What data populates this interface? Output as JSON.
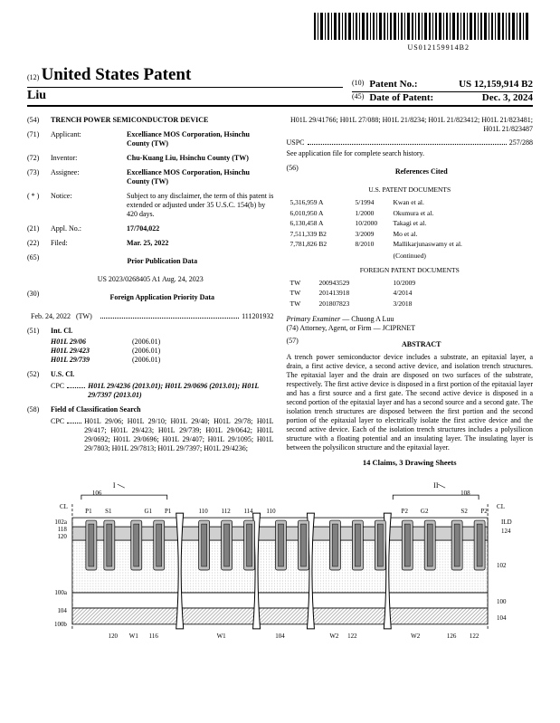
{
  "barcode_text": "US012159914B2",
  "header": {
    "pub_label_num": "(12)",
    "pub_title": "United States Patent",
    "inventor": "Liu",
    "patent_no_label_num": "(10)",
    "patent_no_label": "Patent No.:",
    "patent_no": "US 12,159,914 B2",
    "date_label_num": "(45)",
    "date_label": "Date of Patent:",
    "date": "Dec. 3, 2024"
  },
  "left": {
    "f54_code": "(54)",
    "f54_title": "TRENCH POWER SEMICONDUCTOR DEVICE",
    "f71_code": "(71)",
    "f71_label": "Applicant:",
    "f71_body": "Excelliance MOS Corporation, Hsinchu County (TW)",
    "f72_code": "(72)",
    "f72_label": "Inventor:",
    "f72_body": "Chu-Kuang Liu, Hsinchu County (TW)",
    "f73_code": "(73)",
    "f73_label": "Assignee:",
    "f73_body": "Excelliance MOS Corporation, Hsinchu County (TW)",
    "fnotice_code": "( * )",
    "fnotice_label": "Notice:",
    "fnotice_body": "Subject to any disclaimer, the term of this patent is extended or adjusted under 35 U.S.C. 154(b) by 420 days.",
    "f21_code": "(21)",
    "f21_label": "Appl. No.:",
    "f21_body": "17/704,022",
    "f22_code": "(22)",
    "f22_label": "Filed:",
    "f22_body": "Mar. 25, 2022",
    "f65_code": "(65)",
    "f65_title": "Prior Publication Data",
    "f65_line": "US 2023/0268405 A1    Aug. 24, 2023",
    "f30_code": "(30)",
    "f30_title": "Foreign Application Priority Data",
    "f30_date": "Feb. 24, 2022",
    "f30_country": "(TW)",
    "f30_num": "111201932",
    "f51_code": "(51)",
    "f51_label": "Int. Cl.",
    "f51_rows": [
      {
        "cls": "H01L 29/06",
        "ver": "(2006.01)"
      },
      {
        "cls": "H01L 29/423",
        "ver": "(2006.01)"
      },
      {
        "cls": "H01L 29/739",
        "ver": "(2006.01)"
      }
    ],
    "f52_code": "(52)",
    "f52_label": "U.S. Cl.",
    "f52_cpc_label": "CPC",
    "f52_cpc": "H01L 29/4236 (2013.01); H01L 29/0696 (2013.01); H01L 29/7397 (2013.01)",
    "f58_code": "(58)",
    "f58_label": "Field of Classification Search",
    "f58_cpc_label": "CPC",
    "f58_cpc": "H01L 29/06; H01L 29/10; H01L 29/40; H01L 29/78; H01L 29/417; H01L 29/423; H01L 29/739; H01L 29/0642; H01L 29/0692; H01L 29/0696; H01L 29/407; H01L 29/1095; H01L 29/7803; H01L 29/7813; H01L 29/7397; H01L 29/4236;"
  },
  "right": {
    "cont_cls": "H01L 29/41766; H01L 27/088; H01L 21/8234; H01L 21/823412; H01L 21/823481; H01L 21/823487",
    "uspc_label": "USPC",
    "uspc_val": "257/288",
    "uspc_note": "See application file for complete search history.",
    "f56_code": "(56)",
    "f56_title": "References Cited",
    "us_docs_title": "U.S. PATENT DOCUMENTS",
    "us_docs": [
      {
        "num": "5,316,959 A",
        "date": "5/1994",
        "auth": "Kwan et al."
      },
      {
        "num": "6,010,950 A",
        "date": "1/2000",
        "auth": "Okumura et al."
      },
      {
        "num": "6,130,458 A",
        "date": "10/2000",
        "auth": "Takagi et al."
      },
      {
        "num": "7,511,339 B2",
        "date": "3/2009",
        "auth": "Mo et al."
      },
      {
        "num": "7,781,826 B2",
        "date": "8/2010",
        "auth": "Mallikarjunaswamy et al."
      }
    ],
    "continued": "(Continued)",
    "foreign_title": "FOREIGN PATENT DOCUMENTS",
    "foreign_docs": [
      {
        "cc": "TW",
        "num": "200943529",
        "date": "10/2009"
      },
      {
        "cc": "TW",
        "num": "201413918",
        "date": "4/2014"
      },
      {
        "cc": "TW",
        "num": "201807823",
        "date": "3/2018"
      }
    ],
    "examiner_label": "Primary Examiner",
    "examiner": "— Chuong A Luu",
    "attorney_label": "(74) Attorney, Agent, or Firm",
    "attorney": "— JCIPRNET",
    "f57_code": "(57)",
    "abstract_title": "ABSTRACT",
    "abstract": "A trench power semiconductor device includes a substrate, an epitaxial layer, a drain, a first active device, a second active device, and isolation trench structures. The epitaxial layer and the drain are disposed on two surfaces of the substrate, respectively. The first active device is disposed in a first portion of the epitaxial layer and has a first source and a first gate. The second active device is disposed in a second portion of the epitaxial layer and has a second source and a second gate. The isolation trench structures are disposed between the first portion and the second portion of the epitaxial layer to electrically isolate the first active device and the second active device. Each of the isolation trench structures includes a polysilicon structure with a floating potential and an insulating layer. The insulating layer is between the polysilicon structure and the epitaxial layer.",
    "claims": "14 Claims, 3 Drawing Sheets"
  },
  "figure": {
    "labels_top_left": [
      "106",
      "CL",
      "P1",
      "S1",
      "G1",
      "P1"
    ],
    "labels_top_mid": [
      "110",
      "112",
      "114",
      "110"
    ],
    "labels_top_right": [
      "108",
      "CL",
      "P2",
      "G2",
      "S2",
      "P2",
      "ILD",
      "124"
    ],
    "labels_left": [
      "102a",
      "118",
      "120",
      "100a",
      "104",
      "100b"
    ],
    "labels_bottom": [
      "120",
      "W1",
      "116",
      "W1",
      "104",
      "W2",
      "122",
      "W2",
      "126",
      "122"
    ],
    "labels_right": [
      "102",
      "100",
      "104"
    ],
    "colors": {
      "fill1": "#d9d9d9",
      "fill2": "#bfbfbf",
      "hatch": "#808080",
      "line": "#000000"
    }
  }
}
